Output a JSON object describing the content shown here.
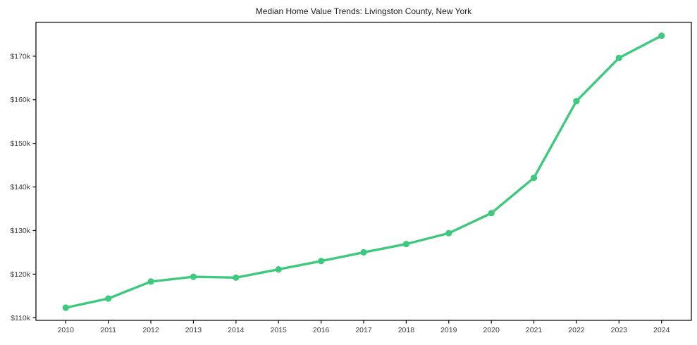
{
  "title": "Median Home Value Trends: Livingston County, New York",
  "chart_data": {
    "type": "line",
    "title": "Median Home Value Trends: Livingston County, New York",
    "xlabel": "",
    "ylabel": "",
    "x": [
      2010,
      2011,
      2012,
      2013,
      2014,
      2015,
      2016,
      2017,
      2018,
      2019,
      2020,
      2021,
      2022,
      2023,
      2024
    ],
    "x_tick_labels": [
      "2010",
      "2011",
      "2012",
      "2013",
      "2014",
      "2015",
      "2016",
      "2017",
      "2018",
      "2019",
      "2020",
      "2021",
      "2022",
      "2023",
      "2024"
    ],
    "series": [
      {
        "name": "Median Home Value",
        "values": [
          112300,
          114400,
          118300,
          119400,
          119200,
          121100,
          123000,
          125000,
          126900,
          129400,
          134000,
          142100,
          159700,
          169600,
          174700
        ]
      }
    ],
    "y_ticks": [
      110000,
      120000,
      130000,
      140000,
      150000,
      160000,
      170000
    ],
    "y_tick_labels": [
      "$110k",
      "$120k",
      "$130k",
      "$140k",
      "$150k",
      "$160k",
      "$170k"
    ],
    "xlim": [
      2009.3,
      2024.7
    ],
    "ylim": [
      109400,
      177800
    ],
    "grid": false,
    "legend": false,
    "line_color": "#3ec97e",
    "marker": "circle",
    "marker_color": "#3ec97e",
    "spine_color": "#000000",
    "tick_color": "#000000"
  }
}
